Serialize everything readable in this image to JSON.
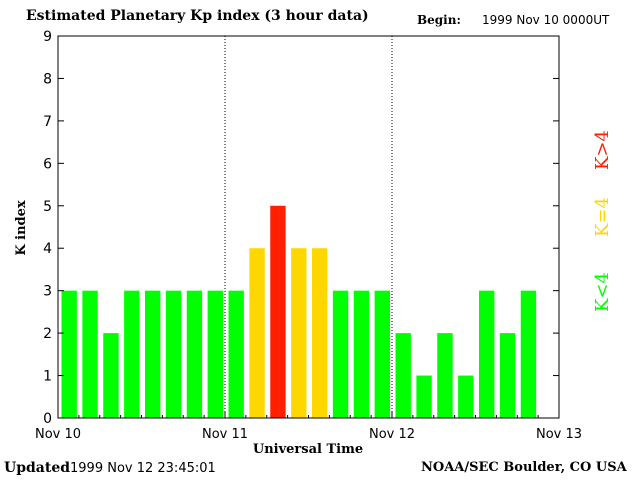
{
  "header": {
    "title": "Estimated Planetary Kp index (3 hour data)",
    "begin_label": "Begin:",
    "begin_value": "1999 Nov 10 0000UT"
  },
  "footer": {
    "updated_label": "Updated",
    "updated_value": "1999 Nov 12 23:45:01",
    "source": "NOAA/SEC Boulder, CO USA"
  },
  "legend": {
    "items": [
      {
        "label": "K<4",
        "color": "#00ff00"
      },
      {
        "label": "K=4",
        "color": "#ffd700"
      },
      {
        "label": "K>4",
        "color": "#ff2000"
      }
    ]
  },
  "chart_data": {
    "type": "bar",
    "xlabel": "Universal Time",
    "ylabel": "K index",
    "ylim": [
      0,
      9
    ],
    "y_ticks": [
      0,
      1,
      2,
      3,
      4,
      5,
      6,
      7,
      8,
      9
    ],
    "x_ticks": [
      "Nov 10",
      "Nov 11",
      "Nov 12",
      "Nov 13"
    ],
    "day_dividers": [
      "Nov 11",
      "Nov 12"
    ],
    "values": [
      3,
      3,
      2,
      3,
      3,
      3,
      3,
      3,
      3,
      4,
      5,
      4,
      4,
      3,
      3,
      3,
      2,
      1,
      2,
      1,
      3,
      2,
      3
    ],
    "colors": {
      "below_4": "#00ff00",
      "equal_4": "#ffd700",
      "above_4": "#ff2000"
    }
  }
}
